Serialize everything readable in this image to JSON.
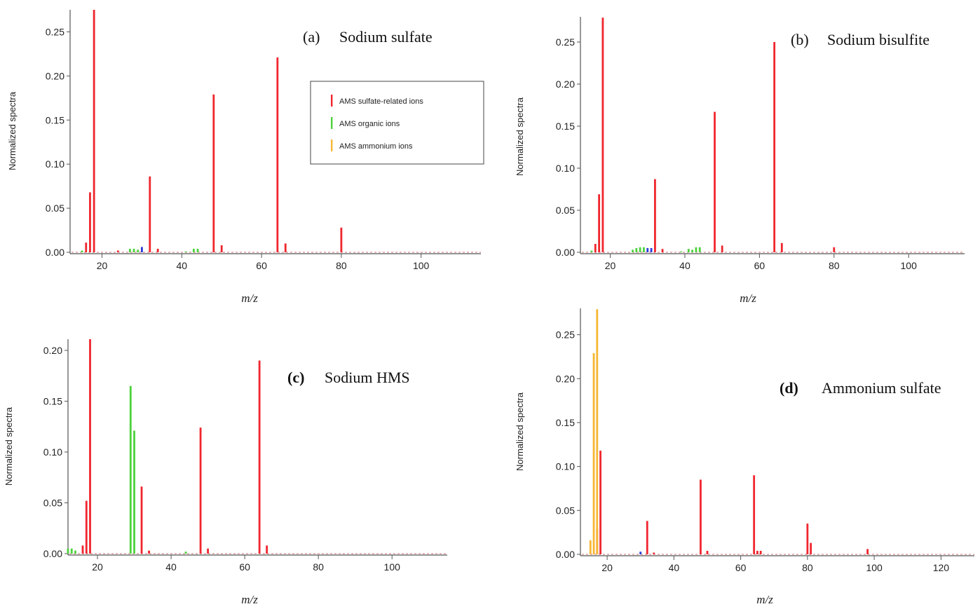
{
  "colors": {
    "sulfate": "#f0262e",
    "organic": "#4cd23c",
    "ammonium": "#f7b733",
    "other": "#2a3cd8",
    "axis": "#555555"
  },
  "legend": {
    "items": [
      {
        "label": "AMS sulfate-related ions",
        "color_key": "sulfate"
      },
      {
        "label": "AMS organic ions",
        "color_key": "organic"
      },
      {
        "label": "AMS ammonium ions",
        "color_key": "ammonium"
      }
    ]
  },
  "chart_data": [
    {
      "id": "a",
      "type": "bar",
      "panel_label": "(a)",
      "title": "Sodium sulfate",
      "xlabel": "m/z",
      "ylabel": "Normalized spectra",
      "xlim": [
        12,
        115
      ],
      "ylim": [
        0,
        0.275
      ],
      "xticks": [
        20,
        40,
        60,
        80,
        100
      ],
      "yticks": [
        "0.00",
        "0.05",
        "0.10",
        "0.15",
        "0.20",
        "0.25"
      ],
      "series": [
        {
          "group": "sulfate",
          "points": [
            [
              16,
              0.011
            ],
            [
              17,
              0.068
            ],
            [
              18,
              0.275
            ],
            [
              24,
              0.002
            ],
            [
              32,
              0.086
            ],
            [
              34,
              0.004
            ],
            [
              48,
              0.179
            ],
            [
              50,
              0.008
            ],
            [
              64,
              0.221
            ],
            [
              66,
              0.01
            ],
            [
              80,
              0.028
            ]
          ]
        },
        {
          "group": "organic",
          "points": [
            [
              15,
              0.002
            ],
            [
              27,
              0.004
            ],
            [
              28,
              0.004
            ],
            [
              29,
              0.003
            ],
            [
              41,
              0.001
            ],
            [
              43,
              0.004
            ],
            [
              44,
              0.004
            ]
          ]
        },
        {
          "group": "ammonium",
          "points": []
        },
        {
          "group": "other",
          "points": [
            [
              30,
              0.006
            ]
          ]
        }
      ]
    },
    {
      "id": "b",
      "type": "bar",
      "panel_label": "(b)",
      "title": "Sodium bisulfite",
      "xlabel": "m/z",
      "ylabel": "Normalized spectra",
      "xlim": [
        12,
        115
      ],
      "ylim": [
        0,
        0.28
      ],
      "xticks": [
        20,
        40,
        60,
        80,
        100
      ],
      "yticks": [
        "0.00",
        "0.05",
        "0.10",
        "0.15",
        "0.20",
        "0.25"
      ],
      "series": [
        {
          "group": "sulfate",
          "points": [
            [
              16,
              0.01
            ],
            [
              17,
              0.069
            ],
            [
              18,
              0.279
            ],
            [
              32,
              0.087
            ],
            [
              34,
              0.004
            ],
            [
              48,
              0.167
            ],
            [
              50,
              0.008
            ],
            [
              64,
              0.25
            ],
            [
              66,
              0.011
            ],
            [
              80,
              0.006
            ]
          ]
        },
        {
          "group": "organic",
          "points": [
            [
              15,
              0.002
            ],
            [
              26,
              0.003
            ],
            [
              27,
              0.005
            ],
            [
              28,
              0.006
            ],
            [
              29,
              0.006
            ],
            [
              39,
              0.001
            ],
            [
              41,
              0.004
            ],
            [
              42,
              0.003
            ],
            [
              43,
              0.006
            ],
            [
              44,
              0.006
            ]
          ]
        },
        {
          "group": "ammonium",
          "points": []
        },
        {
          "group": "other",
          "points": [
            [
              30,
              0.005
            ],
            [
              31,
              0.005
            ]
          ]
        }
      ]
    },
    {
      "id": "c",
      "type": "bar",
      "panel_label": "(c)",
      "title": "Sodium HMS",
      "xlabel": "m/z",
      "ylabel": "Normalized spectra",
      "xlim": [
        12,
        115
      ],
      "ylim": [
        0,
        0.211
      ],
      "xticks": [
        20,
        40,
        60,
        80,
        100
      ],
      "yticks": [
        "0.00",
        "0.05",
        "0.10",
        "0.15",
        "0.20"
      ],
      "series": [
        {
          "group": "sulfate",
          "points": [
            [
              16,
              0.008
            ],
            [
              17,
              0.052
            ],
            [
              18,
              0.211
            ],
            [
              32,
              0.066
            ],
            [
              34,
              0.003
            ],
            [
              48,
              0.124
            ],
            [
              50,
              0.005
            ],
            [
              64,
              0.19
            ],
            [
              66,
              0.008
            ]
          ]
        },
        {
          "group": "organic",
          "points": [
            [
              12,
              0.005
            ],
            [
              13,
              0.005
            ],
            [
              14,
              0.003
            ],
            [
              29,
              0.165
            ],
            [
              30,
              0.121
            ],
            [
              44,
              0.002
            ]
          ]
        },
        {
          "group": "ammonium",
          "points": []
        },
        {
          "group": "other",
          "points": []
        }
      ]
    },
    {
      "id": "d",
      "type": "bar",
      "panel_label": "(d)",
      "title": "Ammonium sulfate",
      "xlabel": "m/z",
      "ylabel": "Normalized spectra",
      "xlim": [
        12,
        130
      ],
      "ylim": [
        0,
        0.28
      ],
      "xticks": [
        20,
        40,
        60,
        80,
        100,
        120
      ],
      "yticks": [
        "0.00",
        "0.05",
        "0.10",
        "0.15",
        "0.20",
        "0.25"
      ],
      "series": [
        {
          "group": "sulfate",
          "points": [
            [
              17,
              0.029
            ],
            [
              18,
              0.118
            ],
            [
              32,
              0.038
            ],
            [
              34,
              0.002
            ],
            [
              48,
              0.085
            ],
            [
              50,
              0.004
            ],
            [
              64,
              0.09
            ],
            [
              65,
              0.004
            ],
            [
              66,
              0.004
            ],
            [
              80,
              0.035
            ],
            [
              81,
              0.013
            ],
            [
              98,
              0.006
            ]
          ]
        },
        {
          "group": "organic",
          "points": []
        },
        {
          "group": "ammonium",
          "points": [
            [
              15,
              0.016
            ],
            [
              16,
              0.229
            ],
            [
              17,
              0.279
            ]
          ]
        },
        {
          "group": "other",
          "points": [
            [
              30,
              0.003
            ]
          ]
        }
      ]
    }
  ]
}
